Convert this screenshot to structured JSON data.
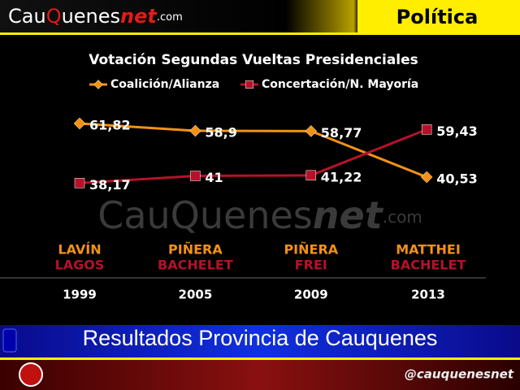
{
  "page": {
    "logo": {
      "part1": "Cau",
      "part2": "Q",
      "part3": "uenes",
      "part4": "net",
      "part5": ".com"
    },
    "section": "Política",
    "banner": "Resultados Provincia de Cauquenes",
    "handle": "@cauquenesnet"
  },
  "chart_data": {
    "type": "line",
    "title": "Votación Segundas Vueltas Presidenciales",
    "categories": [
      "1999",
      "2005",
      "2009",
      "2013"
    ],
    "ylim": [
      30,
      70
    ],
    "series": [
      {
        "name": "Coalición/Alianza",
        "color": "#f39214",
        "marker": "diamond",
        "values": [
          61.82,
          58.9,
          58.77,
          40.53
        ],
        "value_labels": [
          "61,82",
          "58,9",
          "58,77",
          "40,53"
        ],
        "candidates": [
          "LAVÍN",
          "PIÑERA",
          "PIÑERA",
          "MATTHEI"
        ]
      },
      {
        "name": "Concertación/N. Mayoría",
        "color": "#b5122a",
        "marker": "square",
        "values": [
          38.17,
          41,
          41.22,
          59.43
        ],
        "value_labels": [
          "38,17",
          "41",
          "41,22",
          "59,43"
        ],
        "candidates": [
          "LAGOS",
          "BACHELET",
          "FREI",
          "BACHELET"
        ]
      }
    ]
  }
}
